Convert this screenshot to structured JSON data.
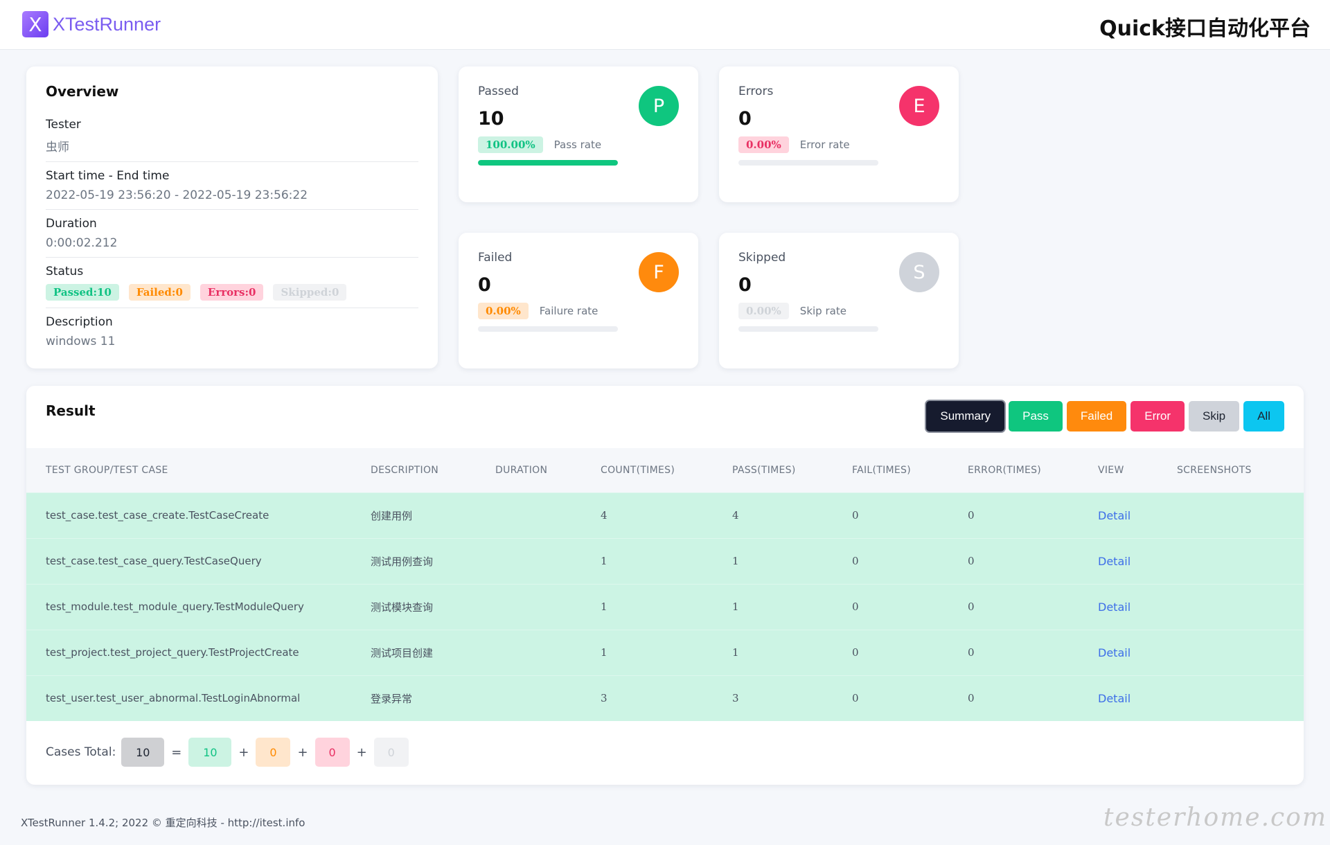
{
  "header": {
    "logo_letter": "X",
    "app_name": "XTestRunner",
    "platform_title": "Quick接口自动化平台"
  },
  "overview": {
    "title": "Overview",
    "tester_label": "Tester",
    "tester_value": "虫师",
    "time_label": "Start time - End time",
    "time_value": "2022-05-19 23:56:20 - 2022-05-19 23:56:22",
    "duration_label": "Duration",
    "duration_value": "0:00:02.212",
    "status_label": "Status",
    "status_badges": {
      "passed": "Passed:10",
      "failed": "Failed:0",
      "errors": "Errors:0",
      "skipped": "Skipped:0"
    },
    "description_label": "Description",
    "description_value": "windows 11"
  },
  "stats": {
    "passed": {
      "label": "Passed",
      "value": "10",
      "icon": "P",
      "rate": "100.00%",
      "rate_label": "Pass rate",
      "rate_fraction": 1.0,
      "color": "#0fc67f"
    },
    "errors": {
      "label": "Errors",
      "value": "0",
      "icon": "E",
      "rate": "0.00%",
      "rate_label": "Error rate",
      "rate_fraction": 0.0,
      "color": "#f5336b"
    },
    "failed": {
      "label": "Failed",
      "value": "0",
      "icon": "F",
      "rate": "0.00%",
      "rate_label": "Failure rate",
      "rate_fraction": 0.0,
      "color": "#ff8a0d"
    },
    "skipped": {
      "label": "Skipped",
      "value": "0",
      "icon": "S",
      "rate": "0.00%",
      "rate_label": "Skip rate",
      "rate_fraction": 0.0,
      "color": "#cfd3da"
    }
  },
  "result": {
    "title": "Result",
    "filters": [
      "Summary",
      "Pass",
      "Failed",
      "Error",
      "Skip",
      "All"
    ],
    "columns": [
      "TEST GROUP/TEST CASE",
      "DESCRIPTION",
      "DURATION",
      "COUNT(TIMES)",
      "PASS(TIMES)",
      "FAIL(TIMES)",
      "ERROR(TIMES)",
      "VIEW",
      "SCREENSHOTS"
    ],
    "rows": [
      {
        "name": "test_case.test_case_create.TestCaseCreate",
        "description": "创建用例",
        "duration": "",
        "count": "4",
        "pass": "4",
        "fail": "0",
        "error": "0",
        "view": "Detail",
        "screenshots": ""
      },
      {
        "name": "test_case.test_case_query.TestCaseQuery",
        "description": "测试用例查询",
        "duration": "",
        "count": "1",
        "pass": "1",
        "fail": "0",
        "error": "0",
        "view": "Detail",
        "screenshots": ""
      },
      {
        "name": "test_module.test_module_query.TestModuleQuery",
        "description": "测试模块查询",
        "duration": "",
        "count": "1",
        "pass": "1",
        "fail": "0",
        "error": "0",
        "view": "Detail",
        "screenshots": ""
      },
      {
        "name": "test_project.test_project_query.TestProjectCreate",
        "description": "测试项目创建",
        "duration": "",
        "count": "1",
        "pass": "1",
        "fail": "0",
        "error": "0",
        "view": "Detail",
        "screenshots": ""
      },
      {
        "name": "test_user.test_user_abnormal.TestLoginAbnormal",
        "description": "登录异常",
        "duration": "",
        "count": "3",
        "pass": "3",
        "fail": "0",
        "error": "0",
        "view": "Detail",
        "screenshots": ""
      }
    ],
    "totals": {
      "label": "Cases Total:",
      "total": "10",
      "passed": "10",
      "failed": "0",
      "errors": "0",
      "skipped": "0",
      "equals": "=",
      "plus": "+"
    }
  },
  "footer": {
    "text": "XTestRunner 1.4.2; 2022 © 重定向科技 - http://itest.info"
  },
  "watermark": "testerhome.com"
}
